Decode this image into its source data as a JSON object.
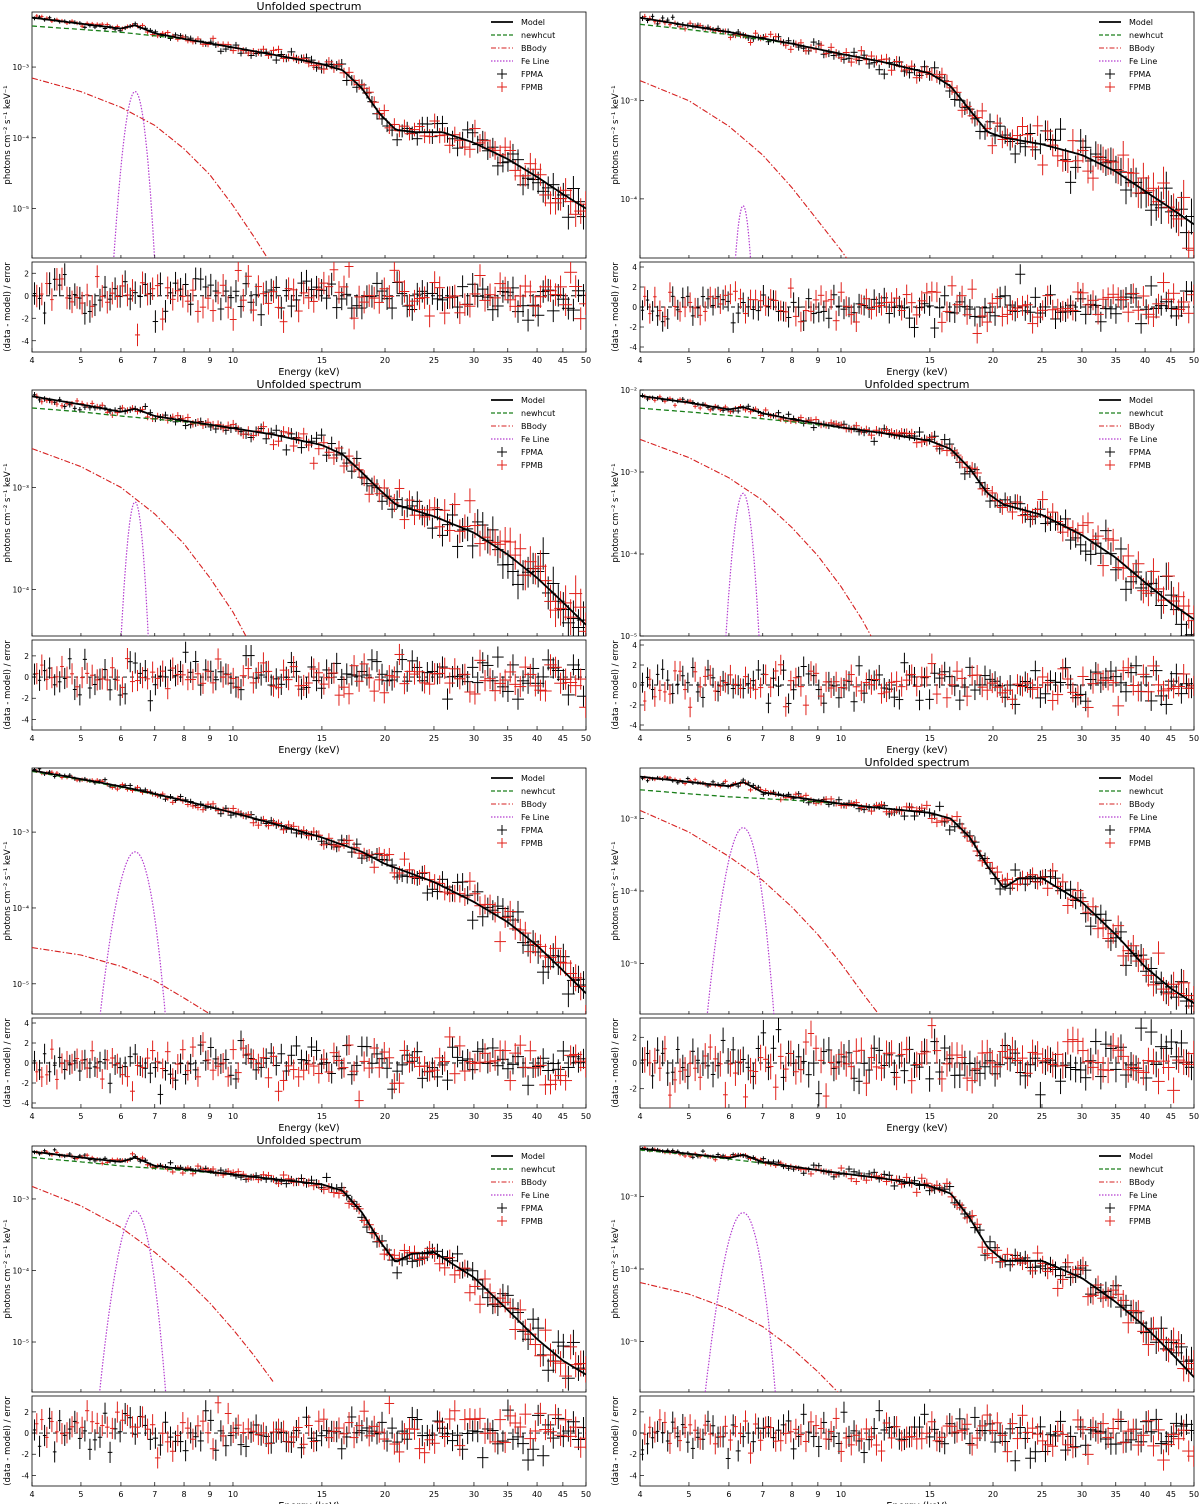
{
  "figure": {
    "panel_title": "Unfolded spectrum"
  },
  "colors": {
    "model": "#000000",
    "newhcut": "#1a7f1a",
    "bbody": "#d62020",
    "feline": "#b43cd0",
    "fpma": "#000000",
    "fpmb": "#e0201a"
  },
  "legend_labels": [
    "Model",
    "newhcut",
    "BBody",
    "Fe Line",
    "FPMA",
    "FPMB"
  ],
  "axis_labels": {
    "top_y": "photons cm⁻² s⁻¹ keV⁻¹",
    "bottom_y": "(data - model) / error",
    "x": "Energy (keV)"
  },
  "x_ticks": [
    4,
    5,
    6,
    7,
    8,
    9,
    10,
    15,
    20,
    25,
    30,
    35,
    40,
    45,
    50
  ],
  "chart_data": [
    {
      "type": "line",
      "title": "Unfolded spectrum",
      "xlabel": "Energy (keV)",
      "ylabel": "photons cm⁻² s⁻¹ keV⁻¹",
      "xscale": "log",
      "yscale": "log",
      "xlim": [
        4,
        50
      ],
      "ylim": [
        2e-06,
        0.006
      ],
      "y_ticks": [
        "10⁻³",
        "10⁻⁴",
        "10⁻⁵"
      ],
      "model_pts": [
        [
          4,
          0.005
        ],
        [
          5,
          0.0041
        ],
        [
          6,
          0.0035
        ],
        [
          6.4,
          0.0039
        ],
        [
          7,
          0.003
        ],
        [
          8,
          0.0025
        ],
        [
          10,
          0.0019
        ],
        [
          12,
          0.0015
        ],
        [
          15,
          0.0011
        ],
        [
          16.5,
          0.0009
        ],
        [
          18,
          0.0005
        ],
        [
          19.5,
          0.00022
        ],
        [
          21,
          0.00013
        ],
        [
          23,
          0.00012
        ],
        [
          26,
          0.00012
        ],
        [
          30,
          8.5e-05
        ],
        [
          35,
          5e-05
        ],
        [
          40,
          2.8e-05
        ],
        [
          45,
          1.6e-05
        ],
        [
          50,
          1e-05
        ]
      ],
      "cont_pts": [
        [
          4,
          0.0038
        ],
        [
          5,
          0.0034
        ],
        [
          6,
          0.0031
        ],
        [
          8,
          0.0025
        ],
        [
          10,
          0.0019
        ]
      ],
      "bb_pts": [
        [
          4,
          0.0007
        ],
        [
          5,
          0.00045
        ],
        [
          6,
          0.00027
        ],
        [
          7,
          0.00015
        ],
        [
          8,
          7e-05
        ],
        [
          9,
          3e-05
        ],
        [
          10,
          1.1e-05
        ],
        [
          11,
          4e-06
        ],
        [
          12,
          1.5e-06
        ]
      ],
      "fe": {
        "center": 6.4,
        "peak": 0.00045,
        "sigma": 0.18
      },
      "res_ticks": [
        "-4",
        "-2",
        "0",
        "2"
      ],
      "res_lim": [
        -5,
        3
      ],
      "res_yticks": [
        -4,
        -2,
        0,
        2
      ]
    },
    {
      "type": "line",
      "title": "",
      "xlabel": "Energy (keV)",
      "ylabel": "photons cm⁻² s⁻¹ keV⁻¹",
      "xscale": "log",
      "yscale": "log",
      "xlim": [
        4,
        50
      ],
      "ylim": [
        2.5e-05,
        0.008
      ],
      "y_ticks": [
        "10⁻³",
        "10⁻⁴"
      ],
      "model_pts": [
        [
          4,
          0.007
        ],
        [
          5,
          0.0058
        ],
        [
          6,
          0.005
        ],
        [
          7,
          0.0043
        ],
        [
          8,
          0.0038
        ],
        [
          10,
          0.003
        ],
        [
          12,
          0.0025
        ],
        [
          15,
          0.0019
        ],
        [
          16.5,
          0.0014
        ],
        [
          18,
          0.0008
        ],
        [
          19.5,
          0.00048
        ],
        [
          21,
          0.00042
        ],
        [
          25,
          0.00036
        ],
        [
          30,
          0.00028
        ],
        [
          35,
          0.00019
        ],
        [
          40,
          0.00012
        ],
        [
          45,
          8e-05
        ],
        [
          50,
          5.5e-05
        ]
      ],
      "cont_pts": [
        [
          4,
          0.006
        ],
        [
          5,
          0.0053
        ],
        [
          6,
          0.0047
        ],
        [
          8,
          0.0038
        ],
        [
          10,
          0.003
        ]
      ],
      "bb_pts": [
        [
          4,
          0.0016
        ],
        [
          5,
          0.001
        ],
        [
          6,
          0.00055
        ],
        [
          7,
          0.00028
        ],
        [
          8,
          0.00013
        ],
        [
          9,
          6e-05
        ],
        [
          10,
          3e-05
        ],
        [
          11,
          1.5e-05
        ]
      ],
      "fe": {
        "center": 6.4,
        "peak": 8.5e-05,
        "sigma": 0.14
      },
      "res_ticks": [
        "-4",
        "-2",
        "0",
        "2",
        "4"
      ],
      "res_lim": [
        -4.5,
        4.5
      ],
      "res_yticks": [
        -4,
        -2,
        0,
        2,
        4
      ]
    },
    {
      "type": "line",
      "title": "Unfolded spectrum",
      "xlabel": "Energy (keV)",
      "ylabel": "photons cm⁻² s⁻¹ keV⁻¹",
      "xscale": "log",
      "yscale": "log",
      "xlim": [
        4,
        50
      ],
      "ylim": [
        3.5e-05,
        0.009
      ],
      "y_ticks": [
        "10⁻³",
        "10⁻⁴"
      ],
      "model_pts": [
        [
          4,
          0.0078
        ],
        [
          5,
          0.0065
        ],
        [
          6,
          0.0055
        ],
        [
          6.4,
          0.0059
        ],
        [
          7,
          0.005
        ],
        [
          8,
          0.0045
        ],
        [
          10,
          0.0038
        ],
        [
          12,
          0.0033
        ],
        [
          15,
          0.0026
        ],
        [
          16.5,
          0.0021
        ],
        [
          18,
          0.0014
        ],
        [
          19.5,
          0.00095
        ],
        [
          21,
          0.00068
        ],
        [
          25,
          0.00052
        ],
        [
          30,
          0.00036
        ],
        [
          35,
          0.00022
        ],
        [
          40,
          0.00013
        ],
        [
          45,
          7.5e-05
        ],
        [
          50,
          4.5e-05
        ]
      ],
      "cont_pts": [
        [
          4,
          0.006
        ],
        [
          5,
          0.0055
        ],
        [
          6,
          0.005
        ],
        [
          8,
          0.0044
        ],
        [
          10,
          0.0038
        ]
      ],
      "bb_pts": [
        [
          4,
          0.0024
        ],
        [
          5,
          0.0016
        ],
        [
          6,
          0.001
        ],
        [
          7,
          0.00055
        ],
        [
          8,
          0.00028
        ],
        [
          9,
          0.00013
        ],
        [
          10,
          6e-05
        ],
        [
          11,
          2.5e-05
        ]
      ],
      "fe": {
        "center": 6.4,
        "peak": 0.00072,
        "sigma": 0.16
      },
      "res_ticks": [
        "-4",
        "-2",
        "0",
        "2"
      ],
      "res_lim": [
        -5,
        3.5
      ],
      "res_yticks": [
        -4,
        -2,
        0,
        2
      ]
    },
    {
      "type": "line",
      "title": "Unfolded spectrum",
      "xlabel": "Energy (keV)",
      "ylabel": "photons cm⁻² s⁻¹ keV⁻¹",
      "xscale": "log",
      "yscale": "log",
      "xlim": [
        4,
        50
      ],
      "ylim": [
        1e-05,
        0.01
      ],
      "y_ticks": [
        "10⁻²",
        "10⁻³",
        "10⁻⁴",
        "10⁻⁵"
      ],
      "model_pts": [
        [
          4,
          0.0085
        ],
        [
          5,
          0.007
        ],
        [
          6,
          0.0058
        ],
        [
          6.4,
          0.0062
        ],
        [
          7,
          0.0052
        ],
        [
          8,
          0.0044
        ],
        [
          10,
          0.0035
        ],
        [
          12,
          0.003
        ],
        [
          15,
          0.0024
        ],
        [
          16.5,
          0.0019
        ],
        [
          18,
          0.0011
        ],
        [
          19.5,
          0.00055
        ],
        [
          21,
          0.0004
        ],
        [
          25,
          0.0003
        ],
        [
          30,
          0.00017
        ],
        [
          35,
          9e-05
        ],
        [
          40,
          4.5e-05
        ],
        [
          45,
          2.5e-05
        ],
        [
          50,
          1.6e-05
        ]
      ],
      "cont_pts": [
        [
          4,
          0.006
        ],
        [
          5,
          0.0054
        ],
        [
          6,
          0.0049
        ],
        [
          8,
          0.0041
        ],
        [
          10,
          0.0035
        ]
      ],
      "bb_pts": [
        [
          4,
          0.0025
        ],
        [
          5,
          0.0015
        ],
        [
          6,
          0.00085
        ],
        [
          7,
          0.00045
        ],
        [
          8,
          0.00021
        ],
        [
          9,
          9.5e-05
        ],
        [
          10,
          4e-05
        ],
        [
          11,
          1.6e-05
        ],
        [
          12,
          6e-06
        ]
      ],
      "fe": {
        "center": 6.4,
        "peak": 0.00055,
        "sigma": 0.17
      },
      "res_ticks": [
        "-4",
        "-2",
        "0",
        "2",
        "4"
      ],
      "res_lim": [
        -4.5,
        4.5
      ],
      "res_yticks": [
        -4,
        -2,
        0,
        2,
        4
      ]
    },
    {
      "type": "line",
      "title": "",
      "xlabel": "Energy (keV)",
      "ylabel": "photons cm⁻² s⁻¹ keV⁻¹",
      "xscale": "log",
      "yscale": "log",
      "xlim": [
        4,
        50
      ],
      "ylim": [
        4e-06,
        0.007
      ],
      "y_ticks": [
        "10⁻³",
        "10⁻⁴",
        "10⁻⁵"
      ],
      "model_pts": [
        [
          4,
          0.0065
        ],
        [
          5,
          0.005
        ],
        [
          6,
          0.004
        ],
        [
          7,
          0.0032
        ],
        [
          8,
          0.0026
        ],
        [
          10,
          0.0018
        ],
        [
          12,
          0.0013
        ],
        [
          15,
          0.00085
        ],
        [
          18,
          0.00055
        ],
        [
          20,
          0.00038
        ],
        [
          25,
          0.00022
        ],
        [
          30,
          0.00012
        ],
        [
          35,
          6.5e-05
        ],
        [
          40,
          3.2e-05
        ],
        [
          45,
          1.5e-05
        ],
        [
          50,
          7.5e-06
        ]
      ],
      "cont_pts": [
        [
          4,
          0.0063
        ],
        [
          5,
          0.0049
        ],
        [
          6,
          0.0039
        ],
        [
          8,
          0.0026
        ],
        [
          10,
          0.0018
        ]
      ],
      "bb_pts": [
        [
          4,
          3e-05
        ],
        [
          5,
          2.4e-05
        ],
        [
          6,
          1.7e-05
        ],
        [
          7,
          1.1e-05
        ],
        [
          8,
          6.5e-06
        ],
        [
          9,
          4e-06
        ]
      ],
      "fe": {
        "center": 6.4,
        "peak": 0.00055,
        "sigma": 0.3
      },
      "res_ticks": [
        "-4",
        "-2",
        "0",
        "2",
        "4"
      ],
      "res_lim": [
        -4.5,
        4.5
      ],
      "res_yticks": [
        -4,
        -2,
        0,
        2,
        4
      ]
    },
    {
      "type": "line",
      "title": "Unfolded spectrum",
      "xlabel": "Energy (keV)",
      "ylabel": "photons cm⁻² s⁻¹ keV⁻¹",
      "xscale": "log",
      "yscale": "log",
      "xlim": [
        4,
        50
      ],
      "ylim": [
        2e-06,
        0.005
      ],
      "y_ticks": [
        "10⁻³",
        "10⁻⁴",
        "10⁻⁵"
      ],
      "model_pts": [
        [
          4,
          0.0038
        ],
        [
          5,
          0.0032
        ],
        [
          6,
          0.0028
        ],
        [
          6.4,
          0.0032
        ],
        [
          7,
          0.0023
        ],
        [
          8,
          0.002
        ],
        [
          10,
          0.0016
        ],
        [
          12,
          0.0014
        ],
        [
          15,
          0.0012
        ],
        [
          16.5,
          0.001
        ],
        [
          18,
          0.00055
        ],
        [
          19.5,
          0.00022
        ],
        [
          21,
          0.00011
        ],
        [
          22.5,
          0.00015
        ],
        [
          25,
          0.00015
        ],
        [
          30,
          7e-05
        ],
        [
          35,
          2.5e-05
        ],
        [
          40,
          9e-06
        ],
        [
          45,
          4.5e-06
        ],
        [
          50,
          2.8e-06
        ]
      ],
      "cont_pts": [
        [
          4,
          0.0025
        ],
        [
          5,
          0.0022
        ],
        [
          6,
          0.002
        ],
        [
          8,
          0.0018
        ],
        [
          10,
          0.0016
        ]
      ],
      "bb_pts": [
        [
          4,
          0.0013
        ],
        [
          5,
          0.00065
        ],
        [
          6,
          0.0003
        ],
        [
          7,
          0.00014
        ],
        [
          8,
          6e-05
        ],
        [
          9,
          2.5e-05
        ],
        [
          10,
          1e-05
        ],
        [
          11,
          4e-06
        ],
        [
          12,
          1.8e-06
        ]
      ],
      "fe": {
        "center": 6.4,
        "peak": 0.00075,
        "sigma": 0.28
      },
      "res_ticks": [
        "-2",
        "0",
        "2"
      ],
      "res_lim": [
        -3.5,
        3.5
      ],
      "res_yticks": [
        -2,
        0,
        2
      ]
    },
    {
      "type": "line",
      "title": "Unfolded spectrum",
      "xlabel": "Energy (keV)",
      "ylabel": "photons cm⁻² s⁻¹ keV⁻¹",
      "xscale": "log",
      "yscale": "log",
      "xlim": [
        4,
        50
      ],
      "ylim": [
        2e-06,
        0.0055
      ],
      "y_ticks": [
        "10⁻³",
        "10⁻⁴",
        "10⁻⁵"
      ],
      "model_pts": [
        [
          4,
          0.0046
        ],
        [
          5,
          0.0038
        ],
        [
          6,
          0.0033
        ],
        [
          6.4,
          0.0038
        ],
        [
          7,
          0.0029
        ],
        [
          8,
          0.0026
        ],
        [
          10,
          0.0022
        ],
        [
          12,
          0.0019
        ],
        [
          15,
          0.0016
        ],
        [
          16.5,
          0.0013
        ],
        [
          18,
          0.00065
        ],
        [
          19.5,
          0.00026
        ],
        [
          21,
          0.00013
        ],
        [
          22.5,
          0.00017
        ],
        [
          25,
          0.00018
        ],
        [
          30,
          8e-05
        ],
        [
          35,
          2.8e-05
        ],
        [
          40,
          1.1e-05
        ],
        [
          45,
          5.5e-06
        ],
        [
          50,
          3.5e-06
        ]
      ],
      "cont_pts": [
        [
          4,
          0.0038
        ],
        [
          5,
          0.0033
        ],
        [
          6,
          0.0029
        ],
        [
          8,
          0.0025
        ],
        [
          10,
          0.0022
        ]
      ],
      "bb_pts": [
        [
          4,
          0.0015
        ],
        [
          5,
          0.0008
        ],
        [
          6,
          0.0004
        ],
        [
          7,
          0.00018
        ],
        [
          8,
          8e-05
        ],
        [
          9,
          3.5e-05
        ],
        [
          10,
          1.5e-05
        ],
        [
          11,
          6.5e-06
        ],
        [
          12,
          2.8e-06
        ]
      ],
      "fe": {
        "center": 6.4,
        "peak": 0.00068,
        "sigma": 0.28
      },
      "res_ticks": [
        "-4",
        "-2",
        "0",
        "2"
      ],
      "res_lim": [
        -5,
        3.5
      ],
      "res_yticks": [
        -4,
        -2,
        0,
        2
      ]
    },
    {
      "type": "line",
      "title": "",
      "xlabel": "Energy (keV)",
      "ylabel": "photons cm⁻² s⁻¹ keV⁻¹",
      "xscale": "log",
      "yscale": "log",
      "xlim": [
        4,
        50
      ],
      "ylim": [
        2e-06,
        0.005
      ],
      "y_ticks": [
        "10⁻³",
        "10⁻⁴",
        "10⁻⁵"
      ],
      "model_pts": [
        [
          4,
          0.0046
        ],
        [
          5,
          0.0039
        ],
        [
          6,
          0.0034
        ],
        [
          6.4,
          0.0038
        ],
        [
          7,
          0.003
        ],
        [
          8,
          0.0026
        ],
        [
          10,
          0.0021
        ],
        [
          12,
          0.0018
        ],
        [
          15,
          0.0014
        ],
        [
          16.5,
          0.0011
        ],
        [
          18,
          0.0005
        ],
        [
          19.5,
          0.0002
        ],
        [
          21,
          0.00013
        ],
        [
          25,
          0.00013
        ],
        [
          30,
          7.5e-05
        ],
        [
          35,
          3.5e-05
        ],
        [
          40,
          1.6e-05
        ],
        [
          45,
          7e-06
        ],
        [
          50,
          3.2e-06
        ]
      ],
      "cont_pts": [
        [
          4,
          0.0044
        ],
        [
          5,
          0.0038
        ],
        [
          6,
          0.0033
        ],
        [
          8,
          0.0026
        ],
        [
          10,
          0.0021
        ]
      ],
      "bb_pts": [
        [
          4,
          6.5e-05
        ],
        [
          5,
          4.5e-05
        ],
        [
          6,
          2.8e-05
        ],
        [
          7,
          1.6e-05
        ],
        [
          8,
          8e-06
        ],
        [
          9,
          3.8e-06
        ],
        [
          10,
          1.8e-06
        ]
      ],
      "fe": {
        "center": 6.4,
        "peak": 0.0006,
        "sigma": 0.3
      },
      "res_ticks": [
        "-4",
        "-2",
        "0",
        "2"
      ],
      "res_lim": [
        -5,
        3.5
      ],
      "res_yticks": [
        -4,
        -2,
        0,
        2
      ]
    }
  ]
}
